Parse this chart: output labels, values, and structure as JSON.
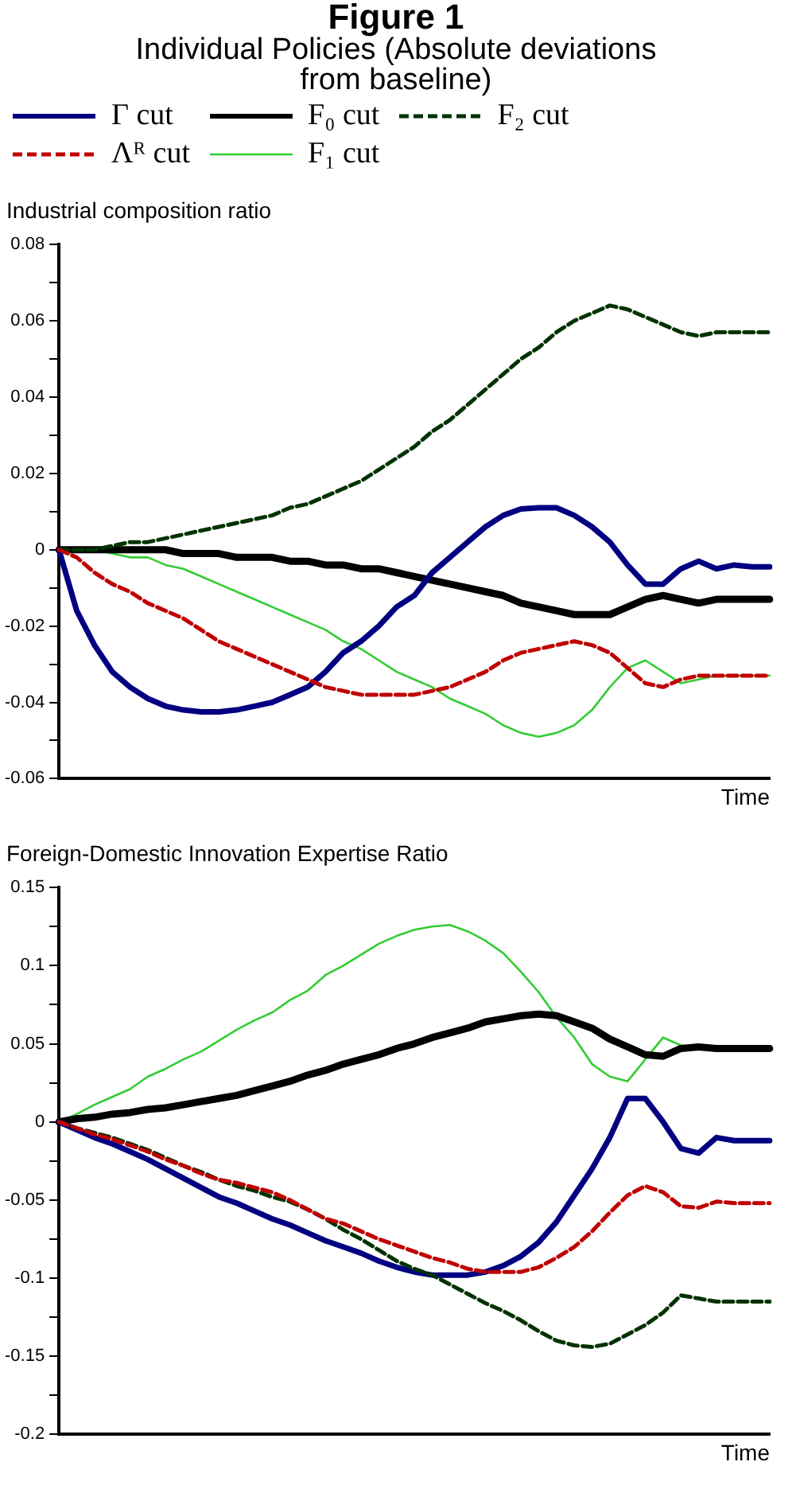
{
  "chart_data": [
    {
      "type": "line",
      "title": "Figure 1",
      "subtitle": "Individual Policies (Absolute deviations from baseline)",
      "ylabel": "Industrial composition ratio",
      "xlabel": "Time",
      "legend": "top",
      "tick_labels": "y",
      "grid": false,
      "marker": "none",
      "categories": [
        null,
        null,
        null,
        null,
        null,
        null,
        null,
        null,
        null,
        null,
        null,
        null,
        null,
        null,
        null,
        null,
        null,
        null,
        null,
        null,
        null,
        null,
        null,
        null,
        null,
        null,
        null,
        null,
        null,
        null,
        null,
        null,
        null,
        null,
        null,
        null,
        null,
        null,
        null,
        null,
        null
      ],
      "ylim": [
        -0.06,
        0.08
      ],
      "yticks": [
        -0.06,
        {
          "value": -0.05,
          "label": null
        },
        -0.04,
        {
          "value": -0.03,
          "label": null
        },
        -0.02,
        {
          "value": -0.01,
          "label": null
        },
        0,
        {
          "value": 0.01,
          "label": null
        },
        0.02,
        {
          "value": 0.03,
          "label": null
        },
        0.04,
        {
          "value": 0.05,
          "label": null
        },
        0.06,
        {
          "value": 0.07,
          "label": null
        },
        0.08
      ],
      "series": [
        {
          "name": "Γ cut",
          "color": "#000080",
          "line_style": "solid",
          "values": [
            0,
            -0.016,
            -0.025,
            -0.032,
            -0.036,
            -0.039,
            -0.041,
            -0.042,
            -0.0425,
            -0.0425,
            -0.042,
            -0.041,
            -0.04,
            -0.038,
            -0.036,
            -0.032,
            -0.027,
            -0.024,
            -0.02,
            -0.015,
            -0.012,
            -0.006,
            -0.002,
            0.002,
            0.006,
            0.009,
            0.0107,
            0.011,
            0.011,
            0.009,
            0.006,
            0.002,
            -0.004,
            -0.009,
            -0.009,
            -0.005,
            -0.003,
            -0.005,
            -0.004,
            -0.0045,
            -0.0045
          ]
        },
        {
          "name": "F₀ cut",
          "color": "#000000",
          "line_style": "solid",
          "values": [
            0,
            0,
            0,
            0,
            0,
            0,
            0,
            -0.001,
            -0.001,
            -0.001,
            -0.002,
            -0.002,
            -0.002,
            -0.003,
            -0.003,
            -0.004,
            -0.004,
            -0.005,
            -0.005,
            -0.006,
            -0.007,
            -0.008,
            -0.009,
            -0.01,
            -0.011,
            -0.012,
            -0.014,
            -0.015,
            -0.016,
            -0.017,
            -0.017,
            -0.017,
            -0.015,
            -0.013,
            -0.012,
            -0.013,
            -0.014,
            -0.013,
            -0.013,
            -0.013,
            -0.013
          ]
        },
        {
          "name": "F₂ cut",
          "color": "#003300",
          "line_style": "dashed",
          "values": [
            0,
            0,
            0,
            0.001,
            0.002,
            0.002,
            0.003,
            0.004,
            0.005,
            0.006,
            0.007,
            0.008,
            0.009,
            0.011,
            0.012,
            0.014,
            0.016,
            0.018,
            0.021,
            0.024,
            0.027,
            0.031,
            0.034,
            0.038,
            0.042,
            0.046,
            0.05,
            0.053,
            0.057,
            0.06,
            0.062,
            0.064,
            0.063,
            0.061,
            0.059,
            0.057,
            0.056,
            0.057,
            0.057,
            0.057,
            0.057
          ]
        },
        {
          "name": "Λᴿ cut",
          "color": "#c00000",
          "line_style": "dashed",
          "values": [
            0,
            -0.002,
            -0.006,
            -0.009,
            -0.011,
            -0.014,
            -0.016,
            -0.018,
            -0.021,
            -0.024,
            -0.026,
            -0.028,
            -0.03,
            -0.032,
            -0.034,
            -0.036,
            -0.037,
            -0.038,
            -0.038,
            -0.038,
            -0.038,
            -0.037,
            -0.036,
            -0.034,
            -0.032,
            -0.029,
            -0.027,
            -0.026,
            -0.025,
            -0.024,
            -0.025,
            -0.027,
            -0.031,
            -0.035,
            -0.036,
            -0.034,
            -0.033,
            -0.033,
            -0.033,
            -0.033,
            -0.033
          ]
        },
        {
          "name": "F₁ cut",
          "color": "#33cc33",
          "line_style": "solid",
          "values": [
            null,
            null,
            0,
            -0.001,
            -0.002,
            -0.002,
            -0.004,
            -0.005,
            -0.007,
            -0.009,
            -0.011,
            -0.013,
            -0.015,
            -0.017,
            -0.019,
            -0.021,
            -0.024,
            -0.026,
            -0.029,
            -0.032,
            -0.034,
            -0.036,
            -0.039,
            -0.041,
            -0.043,
            -0.046,
            -0.048,
            -0.049,
            -0.048,
            -0.046,
            -0.042,
            -0.036,
            -0.031,
            -0.029,
            -0.032,
            -0.035,
            -0.034,
            -0.033,
            -0.033,
            -0.033,
            -0.033
          ]
        }
      ]
    },
    {
      "type": "line",
      "ylabel": "Foreign-Domestic Innovation Expertise Ratio",
      "xlabel": "Time",
      "tick_labels": "y",
      "grid": false,
      "marker": "none",
      "categories": [
        null,
        null,
        null,
        null,
        null,
        null,
        null,
        null,
        null,
        null,
        null,
        null,
        null,
        null,
        null,
        null,
        null,
        null,
        null,
        null,
        null,
        null,
        null,
        null,
        null,
        null,
        null,
        null,
        null,
        null,
        null,
        null,
        null,
        null,
        null,
        null,
        null,
        null,
        null,
        null,
        null
      ],
      "ylim": [
        -0.2,
        0.15
      ],
      "yticks": [
        -0.2,
        {
          "value": -0.175,
          "label": null
        },
        -0.15,
        {
          "value": -0.125,
          "label": null
        },
        -0.1,
        {
          "value": -0.075,
          "label": null
        },
        -0.05,
        {
          "value": -0.025,
          "label": null
        },
        0,
        {
          "value": 0.025,
          "label": null
        },
        0.05,
        {
          "value": 0.075,
          "label": null
        },
        0.1,
        {
          "value": 0.125,
          "label": null
        },
        0.15
      ],
      "series": [
        {
          "color": "#000080",
          "line_style": "solid",
          "values": [
            0,
            -0.005,
            -0.01,
            -0.014,
            -0.019,
            -0.024,
            -0.03,
            -0.036,
            -0.042,
            -0.048,
            -0.052,
            -0.057,
            -0.062,
            -0.066,
            -0.071,
            -0.076,
            -0.08,
            -0.084,
            -0.089,
            -0.093,
            -0.096,
            -0.098,
            -0.098,
            -0.098,
            -0.096,
            -0.092,
            -0.086,
            -0.077,
            -0.064,
            -0.047,
            -0.03,
            -0.01,
            0.015,
            0.015,
            0,
            -0.017,
            -0.02,
            -0.01,
            -0.012,
            -0.012,
            -0.012
          ]
        },
        {
          "color": "#000000",
          "line_style": "solid",
          "values": [
            0,
            0.002,
            0.003,
            0.005,
            0.006,
            0.008,
            0.009,
            0.011,
            0.013,
            0.015,
            0.017,
            0.02,
            0.023,
            0.026,
            0.03,
            0.033,
            0.037,
            0.04,
            0.043,
            0.047,
            0.05,
            0.054,
            0.057,
            0.06,
            0.064,
            0.066,
            0.068,
            0.069,
            0.068,
            0.064,
            0.06,
            0.053,
            0.048,
            0.043,
            0.042,
            0.047,
            0.048,
            0.047,
            0.047,
            0.047,
            0.047
          ]
        },
        {
          "color": "#003300",
          "line_style": "dashed",
          "values": [
            0,
            -0.004,
            -0.007,
            -0.01,
            -0.014,
            -0.018,
            -0.023,
            -0.028,
            -0.032,
            -0.037,
            -0.041,
            -0.044,
            -0.048,
            -0.051,
            -0.056,
            -0.062,
            -0.069,
            -0.075,
            -0.082,
            -0.089,
            -0.094,
            -0.098,
            -0.104,
            -0.11,
            -0.116,
            -0.121,
            -0.127,
            -0.134,
            -0.14,
            -0.143,
            -0.144,
            -0.142,
            -0.136,
            -0.13,
            -0.122,
            -0.111,
            -0.113,
            -0.115,
            -0.115,
            -0.115,
            -0.115
          ]
        },
        {
          "color": "#c00000",
          "line_style": "dashed",
          "values": [
            0,
            -0.004,
            -0.008,
            -0.011,
            -0.015,
            -0.019,
            -0.024,
            -0.028,
            -0.033,
            -0.037,
            -0.039,
            -0.042,
            -0.045,
            -0.05,
            -0.056,
            -0.062,
            -0.065,
            -0.07,
            -0.075,
            -0.079,
            -0.083,
            -0.087,
            -0.09,
            -0.094,
            -0.096,
            -0.096,
            -0.096,
            -0.093,
            -0.087,
            -0.08,
            -0.07,
            -0.058,
            -0.047,
            -0.041,
            -0.045,
            -0.054,
            -0.055,
            -0.051,
            -0.052,
            -0.052,
            -0.052
          ]
        },
        {
          "color": "#33cc33",
          "line_style": "solid",
          "values": [
            0,
            0.005,
            0.011,
            0.016,
            0.021,
            0.029,
            0.034,
            0.04,
            0.045,
            0.052,
            0.059,
            0.065,
            0.07,
            0.078,
            0.084,
            0.094,
            0.1,
            0.107,
            0.114,
            0.119,
            0.123,
            0.125,
            0.126,
            0.122,
            0.116,
            0.108,
            0.096,
            0.083,
            0.067,
            0.054,
            0.037,
            0.029,
            0.026,
            0.04,
            0.054,
            0.049,
            0.047,
            null,
            null,
            null,
            null
          ]
        }
      ]
    }
  ]
}
